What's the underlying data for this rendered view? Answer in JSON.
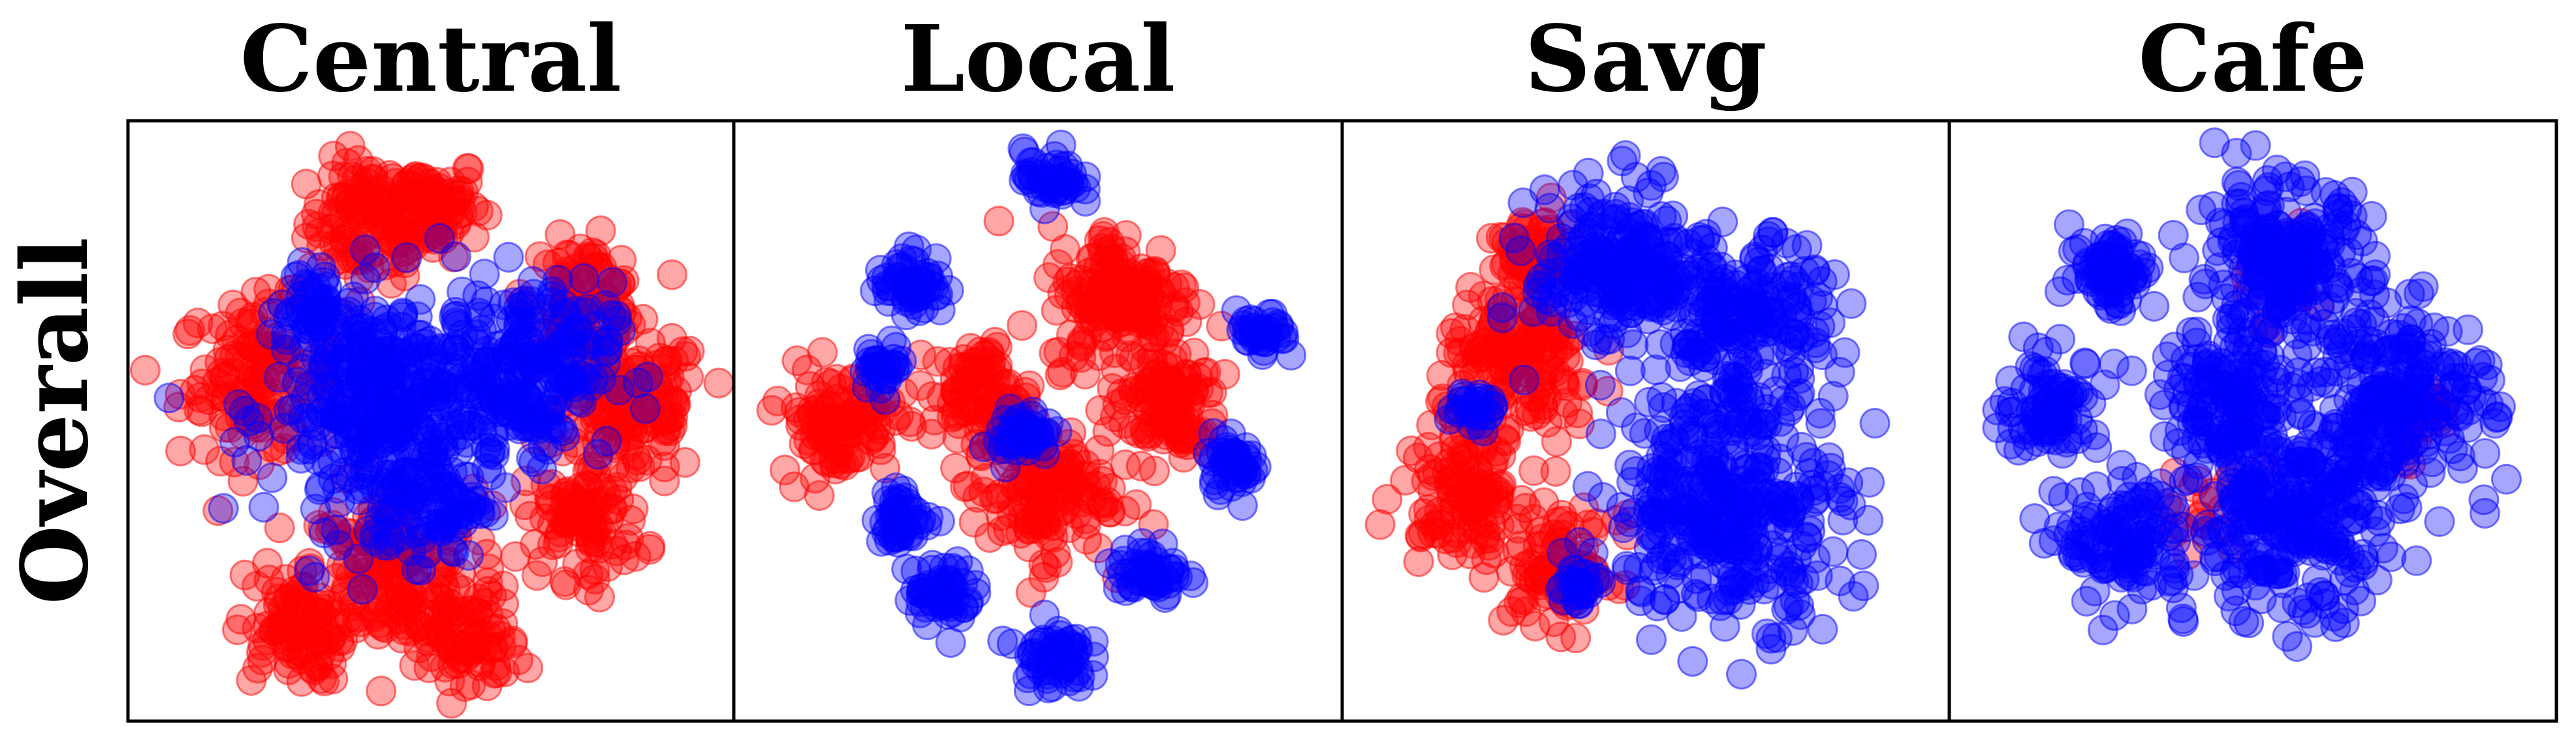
{
  "figure": {
    "row_label": "Overall",
    "colors": {
      "red": "#ff0000",
      "blue": "#0000ff",
      "frame": "#000000"
    }
  },
  "chart_data": [
    {
      "type": "scatter",
      "title": "Central",
      "series": [
        {
          "color": "#ff0000",
          "clusters": [
            {
              "cx": -0.22,
              "cy": 0.72,
              "r": 0.22,
              "n": 110
            },
            {
              "cx": 0.0,
              "cy": 0.78,
              "r": 0.18,
              "n": 80
            },
            {
              "cx": -0.62,
              "cy": 0.15,
              "r": 0.28,
              "n": 140
            },
            {
              "cx": 0.72,
              "cy": 0.05,
              "r": 0.26,
              "n": 140
            },
            {
              "cx": 0.55,
              "cy": 0.45,
              "r": 0.2,
              "n": 90
            },
            {
              "cx": -0.15,
              "cy": -0.55,
              "r": 0.3,
              "n": 160
            },
            {
              "cx": -0.5,
              "cy": -0.75,
              "r": 0.2,
              "n": 90
            },
            {
              "cx": 0.12,
              "cy": -0.8,
              "r": 0.2,
              "n": 90
            },
            {
              "cx": 0.55,
              "cy": -0.35,
              "r": 0.22,
              "n": 100
            }
          ]
        },
        {
          "color": "#0000ff",
          "clusters": [
            {
              "cx": -0.15,
              "cy": 0.05,
              "r": 0.42,
              "n": 380
            },
            {
              "cx": 0.35,
              "cy": 0.2,
              "r": 0.3,
              "n": 200
            },
            {
              "cx": -0.42,
              "cy": 0.4,
              "r": 0.12,
              "n": 40
            },
            {
              "cx": 0.0,
              "cy": -0.3,
              "r": 0.2,
              "n": 80
            }
          ]
        }
      ]
    },
    {
      "type": "scatter",
      "title": "Local",
      "series": [
        {
          "color": "#ff0000",
          "clusters": [
            {
              "cx": 0.3,
              "cy": 0.45,
              "r": 0.26,
              "n": 160
            },
            {
              "cx": -0.72,
              "cy": 0.0,
              "r": 0.2,
              "n": 110
            },
            {
              "cx": -0.2,
              "cy": 0.1,
              "r": 0.18,
              "n": 90
            },
            {
              "cx": 0.0,
              "cy": -0.25,
              "r": 0.25,
              "n": 150
            },
            {
              "cx": 0.45,
              "cy": 0.05,
              "r": 0.2,
              "n": 110
            }
          ]
        },
        {
          "color": "#0000ff",
          "clusters": [
            {
              "cx": 0.05,
              "cy": 0.88,
              "r": 0.1,
              "n": 45
            },
            {
              "cx": -0.45,
              "cy": 0.5,
              "r": 0.12,
              "n": 55
            },
            {
              "cx": -0.55,
              "cy": 0.2,
              "r": 0.08,
              "n": 30
            },
            {
              "cx": -0.48,
              "cy": -0.35,
              "r": 0.1,
              "n": 45
            },
            {
              "cx": -0.35,
              "cy": -0.62,
              "r": 0.12,
              "n": 55
            },
            {
              "cx": 0.05,
              "cy": -0.85,
              "r": 0.12,
              "n": 55
            },
            {
              "cx": 0.4,
              "cy": -0.55,
              "r": 0.12,
              "n": 50
            },
            {
              "cx": 0.7,
              "cy": -0.15,
              "r": 0.1,
              "n": 45
            },
            {
              "cx": 0.8,
              "cy": 0.3,
              "r": 0.09,
              "n": 35
            },
            {
              "cx": -0.05,
              "cy": -0.05,
              "r": 0.1,
              "n": 40
            }
          ]
        }
      ]
    },
    {
      "type": "scatter",
      "title": "Savg",
      "series": [
        {
          "color": "#ff0000",
          "clusters": [
            {
              "cx": -0.45,
              "cy": 0.2,
              "r": 0.28,
              "n": 160
            },
            {
              "cx": -0.65,
              "cy": -0.25,
              "r": 0.22,
              "n": 120
            },
            {
              "cx": -0.3,
              "cy": -0.55,
              "r": 0.2,
              "n": 90
            },
            {
              "cx": -0.4,
              "cy": 0.6,
              "r": 0.15,
              "n": 60
            }
          ]
        },
        {
          "color": "#0000ff",
          "clusters": [
            {
              "cx": -0.1,
              "cy": 0.55,
              "r": 0.3,
              "n": 220
            },
            {
              "cx": 0.35,
              "cy": 0.35,
              "r": 0.3,
              "n": 200
            },
            {
              "cx": 0.3,
              "cy": -0.3,
              "r": 0.42,
              "n": 360
            },
            {
              "cx": -0.62,
              "cy": 0.05,
              "r": 0.08,
              "n": 25
            },
            {
              "cx": -0.25,
              "cy": -0.6,
              "r": 0.08,
              "n": 25
            }
          ]
        }
      ]
    },
    {
      "type": "scatter",
      "title": "Cafe",
      "series": [
        {
          "color": "#ff0000",
          "clusters": [
            {
              "cx": 0.6,
              "cy": 0.0,
              "r": 0.15,
              "n": 20
            },
            {
              "cx": -0.2,
              "cy": -0.3,
              "r": 0.2,
              "n": 20
            },
            {
              "cx": 0.1,
              "cy": 0.5,
              "r": 0.2,
              "n": 15
            }
          ]
        },
        {
          "color": "#0000ff",
          "clusters": [
            {
              "cx": 0.1,
              "cy": 0.55,
              "r": 0.32,
              "n": 240
            },
            {
              "cx": -0.5,
              "cy": 0.55,
              "r": 0.15,
              "n": 70
            },
            {
              "cx": -0.72,
              "cy": 0.05,
              "r": 0.18,
              "n": 90
            },
            {
              "cx": -0.45,
              "cy": -0.45,
              "r": 0.22,
              "n": 120
            },
            {
              "cx": 0.15,
              "cy": -0.35,
              "r": 0.38,
              "n": 300
            },
            {
              "cx": 0.55,
              "cy": 0.1,
              "r": 0.3,
              "n": 200
            },
            {
              "cx": -0.1,
              "cy": 0.05,
              "r": 0.22,
              "n": 120
            }
          ]
        }
      ]
    }
  ]
}
